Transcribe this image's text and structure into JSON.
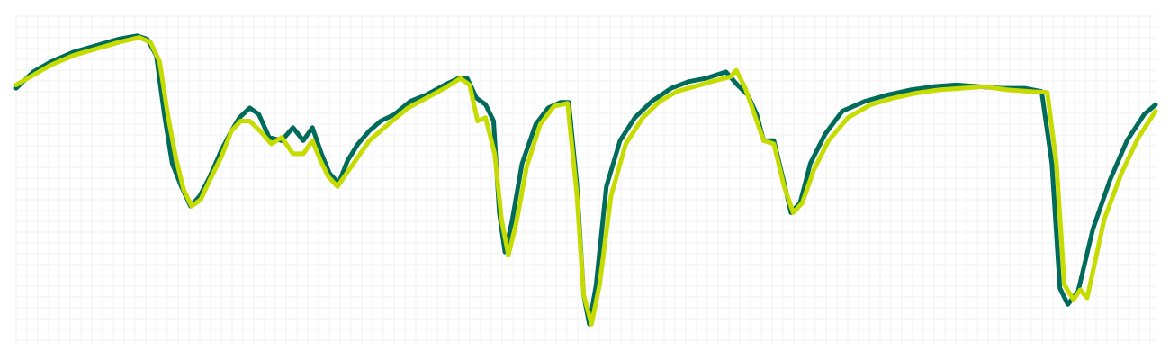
{
  "chart_data": {
    "type": "line",
    "title": "",
    "xlabel": "",
    "ylabel": "",
    "grid": true,
    "legend": "none",
    "xlim": [
      0,
      100
    ],
    "ylim": [
      0,
      100
    ],
    "colors": {
      "background": "#ffffff",
      "grid": "#f0f0f0"
    },
    "series": [
      {
        "color": "#006b5a",
        "points": [
          [
            0,
            78
          ],
          [
            1.5,
            83
          ],
          [
            3,
            86
          ],
          [
            5,
            89
          ],
          [
            7,
            91
          ],
          [
            9,
            93
          ],
          [
            10.6,
            94
          ],
          [
            11.5,
            93
          ],
          [
            12.3,
            88
          ],
          [
            13,
            70
          ],
          [
            13.7,
            55
          ],
          [
            14.5,
            48
          ],
          [
            15.3,
            42
          ],
          [
            16.1,
            45
          ],
          [
            17,
            51
          ],
          [
            18,
            59
          ],
          [
            18.9,
            65
          ],
          [
            19.6,
            69
          ],
          [
            20.5,
            72
          ],
          [
            21.3,
            70
          ],
          [
            22.2,
            63
          ],
          [
            23.3,
            62
          ],
          [
            24.3,
            66
          ],
          [
            25.2,
            62
          ],
          [
            26,
            66
          ],
          [
            26.8,
            58
          ],
          [
            27.5,
            52
          ],
          [
            28.3,
            49
          ],
          [
            29.1,
            56
          ],
          [
            30,
            61
          ],
          [
            31,
            65
          ],
          [
            32,
            68
          ],
          [
            33.2,
            70
          ],
          [
            34.6,
            74
          ],
          [
            36,
            76
          ],
          [
            37.6,
            79
          ],
          [
            38.8,
            81
          ],
          [
            39.6,
            81
          ],
          [
            40.4,
            75
          ],
          [
            41.2,
            73
          ],
          [
            41.9,
            68
          ],
          [
            42.4,
            40
          ],
          [
            42.9,
            28
          ],
          [
            43.5,
            37
          ],
          [
            44.4,
            55
          ],
          [
            45.6,
            67
          ],
          [
            46.7,
            72
          ],
          [
            47.8,
            73.7
          ],
          [
            48.5,
            73.7
          ],
          [
            49.2,
            49
          ],
          [
            49.8,
            15
          ],
          [
            50.3,
            6
          ],
          [
            50.9,
            18
          ],
          [
            51.8,
            48
          ],
          [
            53,
            62
          ],
          [
            54.3,
            69
          ],
          [
            55.8,
            74
          ],
          [
            57.5,
            78
          ],
          [
            59,
            80
          ],
          [
            60.5,
            81
          ],
          [
            62.3,
            83
          ],
          [
            63.3,
            79
          ],
          [
            64.2,
            76
          ],
          [
            65,
            70
          ],
          [
            65.6,
            62
          ],
          [
            66.5,
            62
          ],
          [
            67.4,
            49
          ],
          [
            68,
            40
          ],
          [
            68.8,
            43
          ],
          [
            69.7,
            55
          ],
          [
            71,
            64
          ],
          [
            72.5,
            71
          ],
          [
            74.5,
            74
          ],
          [
            76.5,
            76
          ],
          [
            78.5,
            77.5
          ],
          [
            80.5,
            78.5
          ],
          [
            82.5,
            79
          ],
          [
            84.5,
            78.5
          ],
          [
            86.5,
            78
          ],
          [
            88.5,
            78
          ],
          [
            90,
            77
          ],
          [
            90.9,
            55
          ],
          [
            91.6,
            17
          ],
          [
            92.3,
            12
          ],
          [
            93.2,
            16
          ],
          [
            94.5,
            35
          ],
          [
            96,
            50
          ],
          [
            97.5,
            62
          ],
          [
            99,
            70
          ],
          [
            100,
            73
          ]
        ]
      },
      {
        "color": "#c6dc00",
        "points": [
          [
            0,
            79
          ],
          [
            1.5,
            82
          ],
          [
            3,
            85
          ],
          [
            5,
            88
          ],
          [
            7,
            90
          ],
          [
            9,
            92
          ],
          [
            10.8,
            93.5
          ],
          [
            11.8,
            92
          ],
          [
            12.6,
            86
          ],
          [
            13.3,
            70
          ],
          [
            14,
            57
          ],
          [
            14.7,
            47
          ],
          [
            15.4,
            42
          ],
          [
            16.2,
            44
          ],
          [
            17,
            50
          ],
          [
            18,
            57
          ],
          [
            18.9,
            65
          ],
          [
            19.7,
            68
          ],
          [
            20.5,
            68
          ],
          [
            21.4,
            65
          ],
          [
            22.4,
            61
          ],
          [
            23.3,
            63
          ],
          [
            24.3,
            58
          ],
          [
            25.2,
            58
          ],
          [
            26,
            62
          ],
          [
            26.7,
            56
          ],
          [
            27.4,
            51
          ],
          [
            28.2,
            48
          ],
          [
            29,
            52
          ],
          [
            30,
            57
          ],
          [
            31,
            62
          ],
          [
            32,
            65
          ],
          [
            33,
            68
          ],
          [
            34.4,
            72
          ],
          [
            36,
            75
          ],
          [
            37.6,
            78
          ],
          [
            39,
            81
          ],
          [
            39.8,
            79
          ],
          [
            40.5,
            68
          ],
          [
            41.2,
            69
          ],
          [
            42,
            58
          ],
          [
            42.6,
            38
          ],
          [
            43.2,
            27
          ],
          [
            43.9,
            37
          ],
          [
            44.8,
            54
          ],
          [
            46,
            67
          ],
          [
            47.2,
            72.5
          ],
          [
            48.4,
            73.4
          ],
          [
            49.2,
            46
          ],
          [
            49.8,
            15
          ],
          [
            50.5,
            6
          ],
          [
            51.2,
            18
          ],
          [
            52.2,
            45
          ],
          [
            53.5,
            61
          ],
          [
            55,
            69
          ],
          [
            56.5,
            74
          ],
          [
            58,
            77
          ],
          [
            59.5,
            78.5
          ],
          [
            61,
            80
          ],
          [
            62.7,
            81.5
          ],
          [
            63.2,
            83.5
          ],
          [
            64,
            78
          ],
          [
            64.8,
            70
          ],
          [
            65.6,
            62
          ],
          [
            66.5,
            61
          ],
          [
            67.4,
            48
          ],
          [
            68.2,
            40
          ],
          [
            69,
            43
          ],
          [
            70,
            53
          ],
          [
            71.3,
            62
          ],
          [
            73,
            69
          ],
          [
            75,
            73
          ],
          [
            77,
            75
          ],
          [
            79,
            76.5
          ],
          [
            81,
            77.5
          ],
          [
            83,
            78
          ],
          [
            85,
            78.5
          ],
          [
            87,
            77.5
          ],
          [
            89,
            77
          ],
          [
            90.5,
            76.7
          ],
          [
            91.3,
            55
          ],
          [
            92,
            18
          ],
          [
            92.8,
            13.5
          ],
          [
            93.4,
            16.5
          ],
          [
            94,
            14
          ],
          [
            95.5,
            38
          ],
          [
            97,
            52
          ],
          [
            98.5,
            63
          ],
          [
            100,
            71
          ]
        ]
      }
    ]
  }
}
